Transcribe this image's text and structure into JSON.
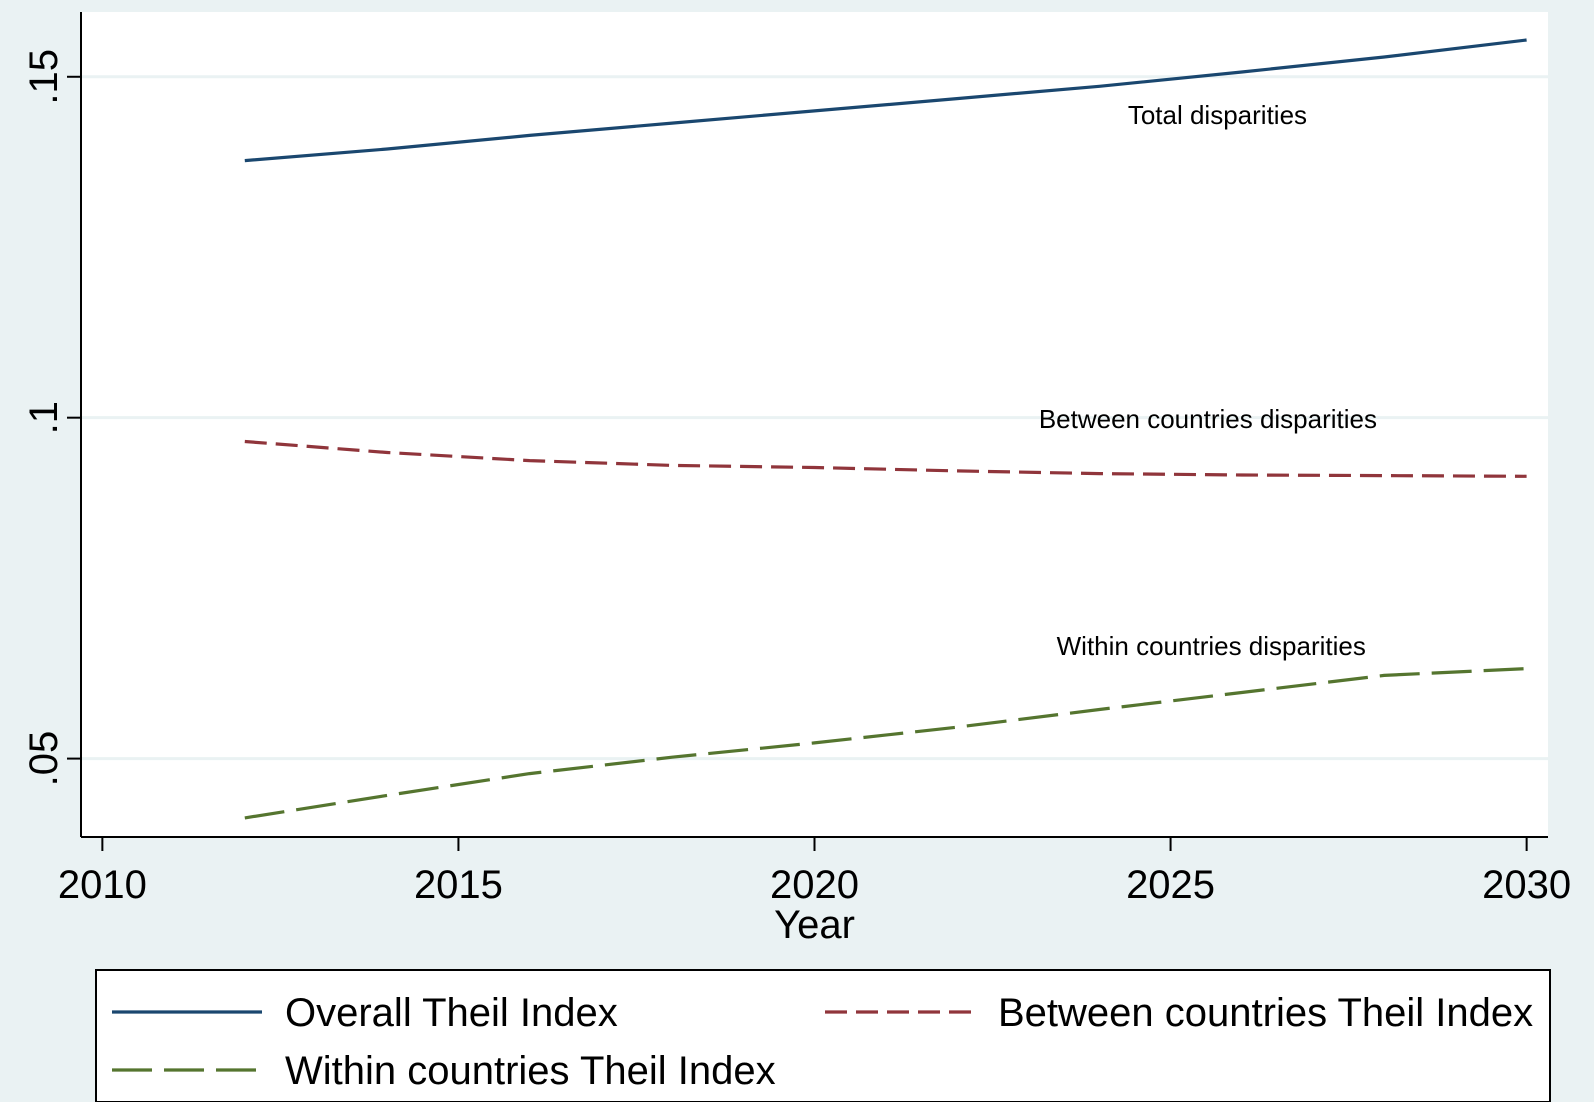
{
  "chart_data": {
    "type": "line",
    "xlabel": "Year",
    "ylabel": "",
    "xlim": [
      2009.7,
      2030.3
    ],
    "ylim": [
      0.0385,
      0.1595
    ],
    "x_ticks": [
      {
        "value": 2010,
        "label": "2010"
      },
      {
        "value": 2015,
        "label": "2015"
      },
      {
        "value": 2020,
        "label": "2020"
      },
      {
        "value": 2025,
        "label": "2025"
      },
      {
        "value": 2030,
        "label": "2030"
      }
    ],
    "y_ticks": [
      {
        "value": 0.05,
        "label": ".05"
      },
      {
        "value": 0.1,
        "label": ".1"
      },
      {
        "value": 0.15,
        "label": ".15"
      }
    ],
    "grid": "horizontal",
    "legend_position": "bottom",
    "series": [
      {
        "name": "Overall Theil Index",
        "color": "#1a476f",
        "dash": "solid",
        "x": [
          2012,
          2014,
          2016,
          2018,
          2020,
          2022,
          2024,
          2026,
          2028,
          2030
        ],
        "y": [
          0.1377,
          0.1394,
          0.1414,
          0.1432,
          0.145,
          0.1468,
          0.1486,
          0.1507,
          0.1529,
          0.1554
        ]
      },
      {
        "name": "Between countries Theil Index",
        "color": "#90353b",
        "dash": "dash",
        "x": [
          2012,
          2014,
          2016,
          2018,
          2020,
          2022,
          2024,
          2026,
          2028,
          2030
        ],
        "y": [
          0.0965,
          0.0949,
          0.0937,
          0.093,
          0.0927,
          0.0922,
          0.0918,
          0.0916,
          0.0915,
          0.0914
        ]
      },
      {
        "name": "Within countries Theil Index",
        "color": "#55752f",
        "dash": "longdash",
        "x": [
          2012,
          2014,
          2016,
          2018,
          2020,
          2022,
          2024,
          2026,
          2028,
          2030
        ],
        "y": [
          0.0413,
          0.0446,
          0.0478,
          0.0502,
          0.0523,
          0.0546,
          0.0572,
          0.0597,
          0.0622,
          0.0632
        ]
      }
    ],
    "annotations": [
      {
        "text": "Total disparities",
        "x": 2024.4,
        "y": 0.1431
      },
      {
        "text": "Between countries disparities",
        "x": 2023.15,
        "y": 0.0985
      },
      {
        "text": "Within countries disparities",
        "x": 2023.4,
        "y": 0.0652
      }
    ]
  }
}
